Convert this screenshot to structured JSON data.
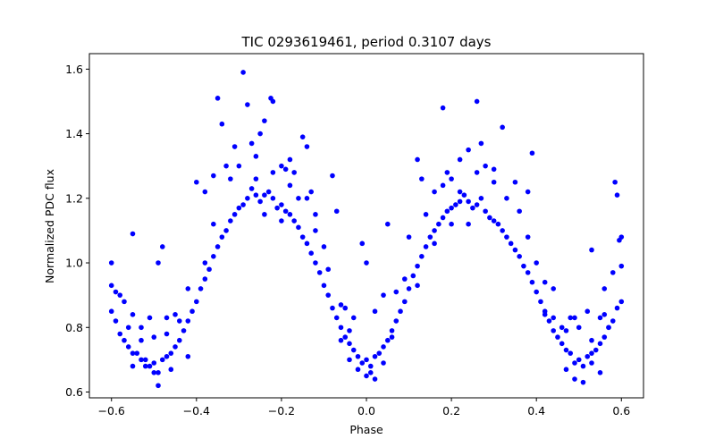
{
  "chart_data": {
    "type": "scatter",
    "title": "TIC 0293619461, period 0.3107 days",
    "xlabel": "Phase",
    "ylabel": "Normalized PDC flux",
    "xlim": [
      -0.652,
      0.652
    ],
    "ylim": [
      0.582,
      1.648
    ],
    "xticks": [
      -0.6,
      -0.4,
      -0.2,
      0.0,
      0.2,
      0.4,
      0.6
    ],
    "xtick_labels": [
      "−0.6",
      "−0.4",
      "−0.2",
      "0.0",
      "0.2",
      "0.4",
      "0.6"
    ],
    "yticks": [
      0.6,
      0.8,
      1.0,
      1.2,
      1.4,
      1.6
    ],
    "ytick_labels": [
      "0.6",
      "0.8",
      "1.0",
      "1.2",
      "1.4",
      "1.6"
    ],
    "grid": false,
    "marker_color": "#0000ff",
    "series": [
      {
        "points": [
          [
            -0.6,
            0.85
          ],
          [
            -0.58,
            0.78
          ],
          [
            -0.56,
            0.74
          ],
          [
            -0.54,
            0.72
          ],
          [
            -0.52,
            0.7
          ],
          [
            -0.5,
            0.69
          ],
          [
            -0.48,
            0.7
          ],
          [
            -0.46,
            0.72
          ],
          [
            -0.44,
            0.76
          ],
          [
            -0.42,
            0.82
          ],
          [
            -0.4,
            0.88
          ],
          [
            -0.38,
            0.95
          ],
          [
            -0.36,
            1.02
          ],
          [
            -0.34,
            1.08
          ],
          [
            -0.32,
            1.13
          ],
          [
            -0.3,
            1.17
          ],
          [
            -0.28,
            1.2
          ],
          [
            -0.26,
            1.21
          ],
          [
            -0.24,
            1.21
          ],
          [
            -0.22,
            1.2
          ],
          [
            -0.2,
            1.18
          ],
          [
            -0.18,
            1.15
          ],
          [
            -0.16,
            1.11
          ],
          [
            -0.14,
            1.06
          ],
          [
            -0.12,
            1.0
          ],
          [
            -0.1,
            0.93
          ],
          [
            -0.08,
            0.86
          ],
          [
            -0.06,
            0.8
          ],
          [
            -0.04,
            0.75
          ],
          [
            -0.02,
            0.71
          ],
          [
            0.0,
            0.7
          ],
          [
            0.02,
            0.71
          ],
          [
            0.04,
            0.74
          ],
          [
            0.06,
            0.79
          ],
          [
            0.08,
            0.85
          ],
          [
            0.1,
            0.92
          ],
          [
            0.12,
            0.99
          ],
          [
            0.14,
            1.05
          ],
          [
            0.16,
            1.1
          ],
          [
            0.18,
            1.14
          ],
          [
            0.2,
            1.17
          ],
          [
            0.22,
            1.19
          ],
          [
            0.24,
            1.19
          ],
          [
            0.26,
            1.18
          ],
          [
            0.28,
            1.16
          ],
          [
            0.3,
            1.13
          ],
          [
            0.32,
            1.1
          ],
          [
            0.34,
            1.06
          ],
          [
            0.36,
            1.02
          ],
          [
            0.38,
            0.97
          ],
          [
            0.4,
            0.91
          ],
          [
            0.42,
            0.85
          ],
          [
            0.44,
            0.79
          ],
          [
            0.46,
            0.75
          ],
          [
            0.48,
            0.72
          ],
          [
            0.5,
            0.7
          ],
          [
            0.52,
            0.71
          ],
          [
            0.54,
            0.73
          ],
          [
            0.56,
            0.77
          ],
          [
            0.58,
            0.82
          ],
          [
            0.6,
            0.88
          ],
          [
            -0.59,
            0.82
          ],
          [
            -0.57,
            0.76
          ],
          [
            -0.55,
            0.72
          ],
          [
            -0.53,
            0.7
          ],
          [
            -0.51,
            0.68
          ],
          [
            -0.49,
            0.66
          ],
          [
            -0.47,
            0.71
          ],
          [
            -0.45,
            0.74
          ],
          [
            -0.43,
            0.79
          ],
          [
            -0.41,
            0.85
          ],
          [
            -0.39,
            0.92
          ],
          [
            -0.37,
            0.98
          ],
          [
            -0.35,
            1.05
          ],
          [
            -0.33,
            1.1
          ],
          [
            -0.31,
            1.15
          ],
          [
            -0.29,
            1.18
          ],
          [
            -0.27,
            1.23
          ],
          [
            -0.25,
            1.19
          ],
          [
            -0.23,
            1.22
          ],
          [
            -0.21,
            1.17
          ],
          [
            -0.19,
            1.16
          ],
          [
            -0.17,
            1.13
          ],
          [
            -0.15,
            1.08
          ],
          [
            -0.13,
            1.03
          ],
          [
            -0.11,
            0.97
          ],
          [
            -0.09,
            0.9
          ],
          [
            -0.07,
            0.83
          ],
          [
            -0.05,
            0.77
          ],
          [
            -0.03,
            0.73
          ],
          [
            -0.01,
            0.69
          ],
          [
            0.01,
            0.68
          ],
          [
            0.03,
            0.72
          ],
          [
            0.05,
            0.76
          ],
          [
            0.07,
            0.82
          ],
          [
            0.09,
            0.88
          ],
          [
            0.11,
            0.96
          ],
          [
            0.13,
            1.02
          ],
          [
            0.15,
            1.08
          ],
          [
            0.17,
            1.12
          ],
          [
            0.19,
            1.16
          ],
          [
            0.21,
            1.18
          ],
          [
            0.23,
            1.21
          ],
          [
            0.25,
            1.17
          ],
          [
            0.27,
            1.2
          ],
          [
            0.29,
            1.14
          ],
          [
            0.31,
            1.12
          ],
          [
            0.33,
            1.08
          ],
          [
            0.35,
            1.04
          ],
          [
            0.37,
            0.99
          ],
          [
            0.39,
            0.94
          ],
          [
            0.41,
            0.88
          ],
          [
            0.43,
            0.82
          ],
          [
            0.45,
            0.77
          ],
          [
            0.47,
            0.73
          ],
          [
            0.49,
            0.69
          ],
          [
            0.51,
            0.68
          ],
          [
            0.53,
            0.72
          ],
          [
            0.55,
            0.75
          ],
          [
            0.57,
            0.8
          ],
          [
            0.59,
            0.86
          ],
          [
            -0.6,
            1.0
          ],
          [
            -0.6,
            0.93
          ],
          [
            -0.59,
            0.91
          ],
          [
            -0.57,
            0.88
          ],
          [
            -0.55,
            0.84
          ],
          [
            -0.55,
            1.09
          ],
          [
            -0.53,
            0.8
          ],
          [
            -0.51,
            0.83
          ],
          [
            -0.5,
            0.77
          ],
          [
            -0.49,
            1.0
          ],
          [
            -0.48,
            1.05
          ],
          [
            -0.47,
            0.83
          ],
          [
            -0.45,
            0.84
          ],
          [
            -0.42,
            0.71
          ],
          [
            -0.4,
            1.25
          ],
          [
            -0.38,
            1.22
          ],
          [
            -0.36,
            1.27
          ],
          [
            -0.35,
            1.51
          ],
          [
            -0.34,
            1.43
          ],
          [
            -0.33,
            1.3
          ],
          [
            -0.32,
            1.26
          ],
          [
            -0.31,
            1.36
          ],
          [
            -0.29,
            1.59
          ],
          [
            -0.28,
            1.49
          ],
          [
            -0.27,
            1.37
          ],
          [
            -0.26,
            1.33
          ],
          [
            -0.25,
            1.4
          ],
          [
            -0.24,
            1.44
          ],
          [
            -0.225,
            1.51
          ],
          [
            -0.22,
            1.5
          ],
          [
            -0.2,
            1.3
          ],
          [
            -0.19,
            1.29
          ],
          [
            -0.18,
            1.32
          ],
          [
            -0.17,
            1.28
          ],
          [
            -0.15,
            1.39
          ],
          [
            -0.14,
            1.36
          ],
          [
            -0.13,
            1.22
          ],
          [
            -0.12,
            1.15
          ],
          [
            -0.08,
            1.27
          ],
          [
            -0.07,
            1.16
          ],
          [
            -0.06,
            0.87
          ],
          [
            -0.05,
            0.86
          ],
          [
            -0.04,
            0.79
          ],
          [
            -0.03,
            0.83
          ],
          [
            -0.01,
            1.06
          ],
          [
            0.0,
            1.0
          ],
          [
            0.02,
            0.85
          ],
          [
            0.04,
            0.9
          ],
          [
            0.05,
            1.12
          ],
          [
            0.07,
            0.91
          ],
          [
            0.12,
            1.32
          ],
          [
            0.13,
            1.26
          ],
          [
            0.16,
            1.22
          ],
          [
            0.18,
            1.48
          ],
          [
            0.19,
            1.28
          ],
          [
            0.2,
            1.26
          ],
          [
            0.22,
            1.32
          ],
          [
            0.24,
            1.35
          ],
          [
            0.26,
            1.5
          ],
          [
            0.27,
            1.37
          ],
          [
            0.28,
            1.3
          ],
          [
            0.3,
            1.29
          ],
          [
            0.32,
            1.42
          ],
          [
            0.33,
            1.2
          ],
          [
            0.35,
            1.25
          ],
          [
            0.38,
            1.22
          ],
          [
            0.39,
            1.34
          ],
          [
            0.4,
            1.0
          ],
          [
            0.42,
            0.84
          ],
          [
            0.44,
            0.83
          ],
          [
            0.46,
            0.8
          ],
          [
            0.48,
            0.83
          ],
          [
            0.49,
            0.83
          ],
          [
            0.5,
            0.8
          ],
          [
            0.52,
            0.85
          ],
          [
            0.53,
            1.04
          ],
          [
            0.55,
            0.83
          ],
          [
            0.57,
            0.8
          ],
          [
            0.58,
            0.97
          ],
          [
            0.585,
            1.25
          ],
          [
            0.59,
            1.21
          ],
          [
            0.6,
            1.08
          ],
          [
            0.595,
            1.07
          ],
          [
            0.6,
            0.99
          ],
          [
            0.51,
            0.63
          ],
          [
            -0.49,
            0.62
          ],
          [
            -0.5,
            0.66
          ],
          [
            -0.46,
            0.67
          ],
          [
            0.0,
            0.65
          ],
          [
            0.02,
            0.64
          ],
          [
            0.01,
            0.66
          ],
          [
            -0.02,
            0.67
          ],
          [
            0.47,
            0.67
          ],
          [
            0.49,
            0.64
          ],
          [
            -0.52,
            0.68
          ],
          [
            0.53,
            0.69
          ],
          [
            0.55,
            0.66
          ],
          [
            -0.55,
            0.68
          ],
          [
            -0.44,
            0.82
          ],
          [
            0.44,
            0.92
          ],
          [
            -0.58,
            0.9
          ],
          [
            0.56,
            0.92
          ],
          [
            -0.06,
            0.76
          ],
          [
            0.06,
            0.77
          ],
          [
            -0.1,
            1.05
          ],
          [
            0.1,
            1.08
          ],
          [
            -0.14,
            1.2
          ],
          [
            0.14,
            1.15
          ],
          [
            -0.3,
            1.3
          ],
          [
            0.3,
            1.25
          ],
          [
            -0.22,
            1.28
          ],
          [
            0.22,
            1.22
          ],
          [
            -0.26,
            1.26
          ],
          [
            0.26,
            1.28
          ],
          [
            -0.18,
            1.24
          ],
          [
            0.18,
            1.24
          ],
          [
            -0.24,
            1.15
          ],
          [
            0.24,
            1.12
          ],
          [
            -0.2,
            1.13
          ],
          [
            0.2,
            1.12
          ],
          [
            -0.36,
            1.12
          ],
          [
            0.36,
            1.16
          ],
          [
            -0.16,
            1.2
          ],
          [
            0.16,
            1.06
          ],
          [
            -0.12,
            1.1
          ],
          [
            0.12,
            0.93
          ],
          [
            -0.09,
            0.98
          ],
          [
            0.09,
            0.95
          ],
          [
            -0.42,
            0.92
          ],
          [
            0.42,
            0.94
          ],
          [
            -0.38,
            1.0
          ],
          [
            0.38,
            1.08
          ],
          [
            -0.47,
            0.78
          ],
          [
            0.47,
            0.79
          ],
          [
            -0.53,
            0.76
          ],
          [
            0.53,
            0.76
          ],
          [
            -0.56,
            0.8
          ],
          [
            0.56,
            0.84
          ],
          [
            -0.04,
            0.7
          ],
          [
            0.04,
            0.69
          ]
        ]
      }
    ]
  }
}
